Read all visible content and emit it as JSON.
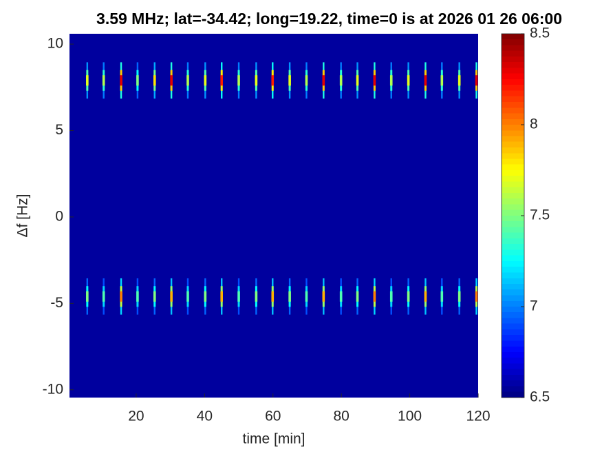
{
  "chart_data": {
    "type": "heatmap",
    "title": "3.59 MHz;  lat=-34.42; long=19.22, time=0 is at 2026 01 26 06:00",
    "xlabel": "time [min]",
    "ylabel": "Δf [Hz]",
    "xlim": [
      0.5,
      120
    ],
    "xticks": [
      20,
      40,
      60,
      80,
      100,
      120
    ],
    "ylim": [
      -10.45,
      10.6
    ],
    "yticks": [
      -10,
      -5,
      0,
      5,
      10
    ],
    "clim": [
      6.5,
      8.5
    ],
    "cticks": [
      6.5,
      7,
      7.5,
      8,
      8.5
    ],
    "colormap": "jet",
    "background_value": 6.56,
    "x": [
      5.7,
      10.5,
      15.6,
      20.4,
      25.4,
      30.3,
      35.1,
      40.2,
      45.0,
      50.0,
      55.1,
      59.9,
      64.9,
      69.8,
      74.8,
      79.9,
      84.7,
      89.7,
      94.6,
      99.6,
      104.6,
      109.4,
      114.5,
      119.5
    ],
    "bands": [
      {
        "center": 7.9,
        "values": [
          7.7,
          7.6,
          8.3,
          7.5,
          7.8,
          8.3,
          7.6,
          7.7,
          8.2,
          7.6,
          7.7,
          8.2,
          7.7,
          7.6,
          8.3,
          7.6,
          7.7,
          8.3,
          7.6,
          7.7,
          8.3,
          7.6,
          7.7,
          8.3
        ]
      },
      {
        "center": -4.6,
        "values": [
          7.5,
          7.4,
          8.0,
          7.4,
          7.5,
          7.9,
          7.4,
          7.5,
          7.9,
          7.4,
          7.5,
          7.9,
          7.5,
          7.4,
          7.9,
          7.4,
          7.5,
          8.0,
          7.4,
          7.5,
          7.9,
          7.4,
          7.5,
          8.0
        ]
      }
    ]
  }
}
